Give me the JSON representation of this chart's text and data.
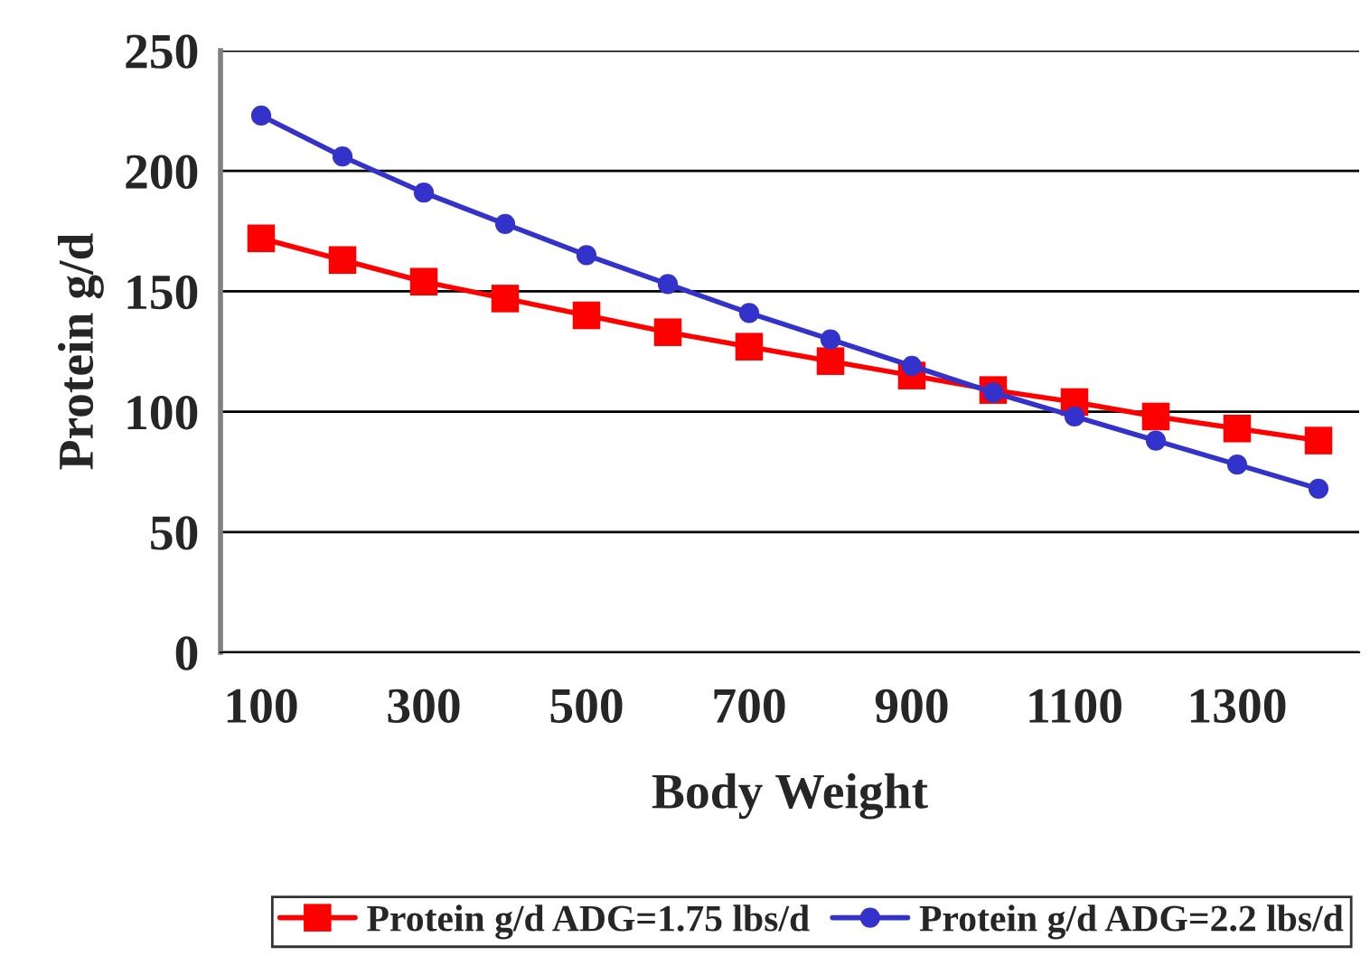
{
  "chart_data": {
    "type": "line",
    "xlabel": "Body Weight",
    "ylabel": "Protein g/d",
    "categories": [
      "100",
      null,
      "300",
      null,
      "500",
      null,
      "700",
      null,
      "900",
      null,
      "1100",
      null,
      "1300",
      null
    ],
    "series": [
      {
        "name": "Protein g/d ADG=1.75 lbs/d",
        "color": "#ff0000",
        "marker": "square",
        "values": [
          172,
          163,
          154,
          147,
          140,
          133,
          127,
          121,
          115,
          109,
          104,
          98,
          93,
          88
        ]
      },
      {
        "name": "Protein g/d ADG=2.2 lbs/d",
        "color": "#3333cc",
        "marker": "circle",
        "values": [
          223,
          206,
          191,
          178,
          165,
          153,
          141,
          130,
          119,
          108,
          98,
          88,
          78,
          68
        ]
      }
    ],
    "ylim": [
      0,
      250
    ],
    "yticks": [
      0,
      50,
      100,
      150,
      200,
      250
    ],
    "grid": "y",
    "legend": "bottom right",
    "line_style": "solid"
  }
}
